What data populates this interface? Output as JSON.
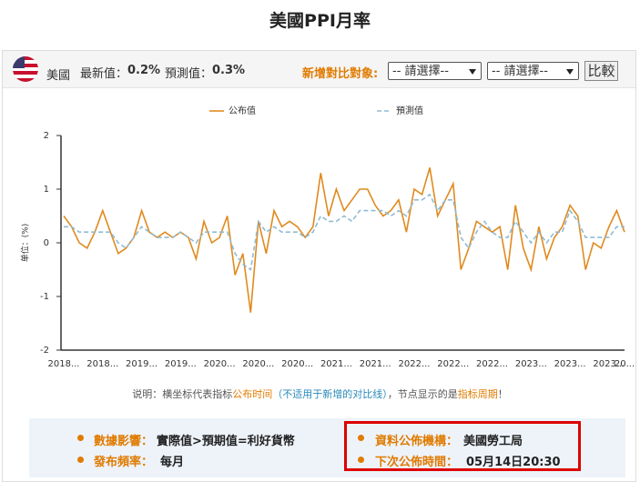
{
  "header": {
    "title": "美國PPI月率",
    "country": "美國",
    "latest_label": "最新值：",
    "latest_value": "0.2%",
    "forecast_label": "預測值：",
    "forecast_value": "0.3%",
    "compare_label": "新增對比對象:",
    "selects": [
      "-- 請選擇--",
      "-- 請選擇--"
    ],
    "compare_button": "比較"
  },
  "chart_data": {
    "type": "line",
    "y_label": "单位：(%)",
    "categories": [
      "2018...",
      null,
      null,
      null,
      null,
      "2018...",
      null,
      null,
      null,
      null,
      "2019...",
      null,
      null,
      null,
      null,
      "2019...",
      null,
      null,
      null,
      null,
      "2020...",
      null,
      null,
      null,
      null,
      "2020...",
      null,
      null,
      null,
      null,
      "2020...",
      null,
      null,
      null,
      null,
      "2021...",
      null,
      null,
      null,
      null,
      "2021...",
      null,
      null,
      null,
      null,
      "2022...",
      null,
      null,
      null,
      null,
      "2022...",
      null,
      null,
      null,
      null,
      "2022...",
      null,
      null,
      null,
      null,
      "2023...",
      null,
      null,
      null,
      null,
      "2023...",
      null,
      null,
      null,
      null,
      "2023...",
      null,
      "20..."
    ],
    "series": [
      {
        "name": "公布值",
        "color": "#e08a1e",
        "dashed": false,
        "values": [
          0.5,
          0.3,
          0.0,
          -0.1,
          0.2,
          0.6,
          0.2,
          -0.2,
          -0.1,
          0.1,
          0.6,
          0.2,
          0.1,
          0.2,
          0.1,
          0.2,
          0.1,
          -0.3,
          0.4,
          0.0,
          0.1,
          0.5,
          -0.6,
          -0.2,
          -1.3,
          0.4,
          -0.2,
          0.6,
          0.3,
          0.4,
          0.3,
          0.1,
          0.3,
          1.3,
          0.5,
          1.0,
          0.6,
          0.8,
          1.0,
          1.0,
          0.7,
          0.5,
          0.6,
          0.8,
          0.2,
          1.0,
          0.9,
          1.4,
          0.5,
          0.8,
          1.1,
          -0.5,
          -0.1,
          0.4,
          0.3,
          0.2,
          0.3,
          -0.5,
          0.7,
          -0.1,
          -0.5,
          0.3,
          -0.3,
          0.1,
          0.3,
          0.7,
          0.5,
          -0.5,
          0.0,
          -0.1,
          0.3,
          0.6,
          0.2
        ]
      },
      {
        "name": "預測值",
        "color": "#8fbcd4",
        "dashed": true,
        "values": [
          0.3,
          0.3,
          0.2,
          0.2,
          0.2,
          0.2,
          0.2,
          0.0,
          -0.1,
          0.1,
          0.3,
          0.2,
          0.1,
          0.1,
          0.1,
          0.2,
          0.1,
          0.0,
          0.2,
          0.2,
          0.2,
          0.2,
          -0.2,
          -0.4,
          -0.5,
          0.4,
          0.2,
          0.3,
          0.2,
          0.2,
          0.2,
          0.1,
          0.2,
          0.5,
          0.4,
          0.4,
          0.5,
          0.4,
          0.6,
          0.6,
          0.6,
          0.6,
          0.5,
          0.6,
          0.5,
          0.8,
          0.8,
          0.9,
          0.6,
          0.8,
          0.8,
          0.1,
          -0.1,
          0.2,
          0.4,
          0.2,
          0.1,
          0.1,
          0.4,
          0.2,
          0.0,
          0.2,
          0.0,
          0.2,
          0.2,
          0.6,
          0.4,
          0.1,
          0.1,
          0.1,
          0.1,
          0.3,
          0.3
        ]
      }
    ],
    "ylim": [
      -2,
      2
    ],
    "yticks": [
      2,
      1,
      0,
      -1,
      -2
    ],
    "grid": false,
    "legend": "top"
  },
  "note": [
    "说明：横坐标代表指标",
    "公布时间",
    "（不适用于新增的对比线）",
    "，节点显示的是",
    "指标周期",
    "！"
  ],
  "info": [
    {
      "label": "數據影響：",
      "value": "實際值>預期值=利好貨幣"
    },
    {
      "label": "發布頻率：",
      "value": "每月"
    },
    {
      "label": "資料公佈機構：",
      "value": "美國勞工局"
    },
    {
      "label": "下次公佈時間：",
      "value": "05月14日20:30"
    }
  ]
}
